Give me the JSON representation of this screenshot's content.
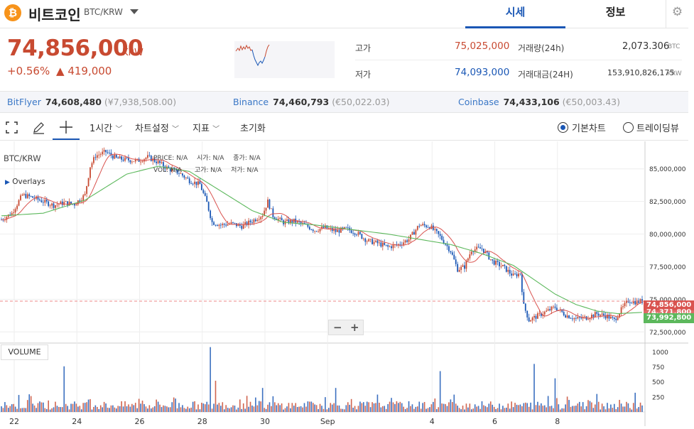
{
  "header": {
    "coin_name": "비트코인",
    "pair": "BTC/KRW",
    "coin_symbol": "₿",
    "tabs": [
      "시세",
      "정보"
    ]
  },
  "ticker": {
    "price": "74,856,000",
    "unit": "KRW",
    "change_pct": "+0.56%",
    "change_amt": "▲ 419,000",
    "high_label": "고가",
    "high": "75,025,000",
    "low_label": "저가",
    "low": "74,093,000",
    "volume_label": "거래량(24h)",
    "volume": "2,073.306",
    "volume_unit": "BTC",
    "value_label": "거래대금(24H)",
    "value": "153,910,826,175",
    "value_unit": "KRW"
  },
  "exchanges": [
    {
      "name": "BitFlyer",
      "price": "74,608,480",
      "sub": "(¥7,938,508.00)"
    },
    {
      "name": "Binance",
      "price": "74,460,793",
      "sub": "(€50,022.03)"
    },
    {
      "name": "Coinbase",
      "price": "74,433,106",
      "sub": "(€50,003.43)"
    }
  ],
  "toolbar": {
    "interval": "1시간",
    "chart_settings": "차트설정",
    "indicators": "지표",
    "reset": "초기화",
    "basic_chart": "기본차트",
    "tradingview": "트레이딩뷰"
  },
  "legend": {
    "symbol": "BTC/KRW",
    "overlays": "Overlays",
    "price_label": "PRICE:",
    "price_val": "N/A",
    "open_label": "시가:",
    "open_val": "N/A",
    "close_label": "종가:",
    "close_val": "N/A",
    "vol_label": "VOL:",
    "vol_val": "N/A",
    "high_label": "고가:",
    "high_val": "N/A",
    "low_label": "저가:",
    "low_val": "N/A",
    "volume_panel": "VOLUME",
    "zoom_out": "−",
    "zoom_in": "+"
  },
  "colors": {
    "up": "#c84a31",
    "down": "#1a57b5",
    "ma_short": "#d9534f",
    "ma_long": "#5cb85c",
    "accent": "#1a57b5"
  },
  "chart_data": {
    "type": "candlestick",
    "symbol": "BTC/KRW",
    "interval": "1h",
    "x_ticks": [
      "22",
      "24",
      "26",
      "28",
      "30",
      "Sep",
      "4",
      "6",
      "8"
    ],
    "y_ticks": [
      "85,000,000",
      "82,500,000",
      "80,000,000",
      "77,500,000",
      "75,000,000",
      "72,500,000"
    ],
    "y_ticks_values": [
      85000000,
      82500000,
      80000000,
      77500000,
      75000000,
      72500000
    ],
    "ylim": [
      71700000,
      87000000
    ],
    "volume_ticks": [
      "1000",
      "750",
      "500",
      "250"
    ],
    "volume_ticks_values": [
      1000,
      750,
      500,
      250
    ],
    "volume_ylim": [
      0,
      1100
    ],
    "last_price": 74856000,
    "last_price_label": "74,856,000",
    "ma_short_last_label": "74,371,800",
    "ma_long_last_label": "73,992,800",
    "price_path": [
      [
        0,
        81100000
      ],
      [
        6,
        81600000
      ],
      [
        12,
        83000000
      ],
      [
        18,
        82800000
      ],
      [
        24,
        82500000
      ],
      [
        30,
        82200000
      ],
      [
        36,
        82400000
      ],
      [
        42,
        82300000
      ],
      [
        48,
        83000000
      ],
      [
        51,
        85200000
      ],
      [
        54,
        86000000
      ],
      [
        60,
        86300000
      ],
      [
        66,
        85800000
      ],
      [
        72,
        85700000
      ],
      [
        78,
        85600000
      ],
      [
        84,
        85900000
      ],
      [
        90,
        85500000
      ],
      [
        96,
        85000000
      ],
      [
        102,
        84700000
      ],
      [
        108,
        84100000
      ],
      [
        114,
        83800000
      ],
      [
        118,
        82400000
      ],
      [
        121,
        80900000
      ],
      [
        126,
        80700000
      ],
      [
        132,
        80800000
      ],
      [
        138,
        80600000
      ],
      [
        144,
        81000000
      ],
      [
        150,
        81500000
      ],
      [
        153,
        82500000
      ],
      [
        156,
        81400000
      ],
      [
        162,
        80900000
      ],
      [
        168,
        81000000
      ],
      [
        174,
        80700000
      ],
      [
        180,
        80300000
      ],
      [
        186,
        80500000
      ],
      [
        192,
        80200000
      ],
      [
        198,
        80400000
      ],
      [
        204,
        80100000
      ],
      [
        210,
        79500000
      ],
      [
        216,
        79300000
      ],
      [
        222,
        79000000
      ],
      [
        228,
        79200000
      ],
      [
        234,
        79600000
      ],
      [
        240,
        80700000
      ],
      [
        246,
        80600000
      ],
      [
        252,
        79800000
      ],
      [
        258,
        78700000
      ],
      [
        262,
        77300000
      ],
      [
        266,
        77500000
      ],
      [
        270,
        78800000
      ],
      [
        276,
        78900000
      ],
      [
        282,
        77900000
      ],
      [
        288,
        77500000
      ],
      [
        294,
        76800000
      ],
      [
        298,
        77000000
      ],
      [
        300,
        74500000
      ],
      [
        303,
        73400000
      ],
      [
        306,
        73600000
      ],
      [
        312,
        74000000
      ],
      [
        318,
        74400000
      ],
      [
        324,
        73800000
      ],
      [
        330,
        73500000
      ],
      [
        336,
        73600000
      ],
      [
        342,
        73900000
      ],
      [
        348,
        73700000
      ],
      [
        352,
        73400000
      ],
      [
        356,
        74200000
      ],
      [
        360,
        74900000
      ],
      [
        364,
        74800000
      ],
      [
        368,
        74856000
      ]
    ],
    "ma_long_path": [
      [
        0,
        81400000
      ],
      [
        24,
        81600000
      ],
      [
        48,
        82600000
      ],
      [
        72,
        84600000
      ],
      [
        90,
        85200000
      ],
      [
        108,
        84800000
      ],
      [
        126,
        83300000
      ],
      [
        144,
        81800000
      ],
      [
        162,
        80900000
      ],
      [
        180,
        80700000
      ],
      [
        204,
        80300000
      ],
      [
        222,
        80000000
      ],
      [
        240,
        79600000
      ],
      [
        258,
        79200000
      ],
      [
        276,
        78500000
      ],
      [
        294,
        77600000
      ],
      [
        306,
        76500000
      ],
      [
        318,
        75400000
      ],
      [
        330,
        74600000
      ],
      [
        342,
        74100000
      ],
      [
        354,
        73900000
      ],
      [
        368,
        74000000
      ]
    ],
    "x_tick_positions": [
      0,
      36,
      72,
      108,
      144,
      180,
      240,
      276,
      312
    ],
    "volume_spikes": [
      [
        36,
        760
      ],
      [
        120,
        1080
      ],
      [
        123,
        520
      ],
      [
        150,
        400
      ],
      [
        192,
        400
      ],
      [
        252,
        680
      ],
      [
        306,
        800
      ],
      [
        318,
        560
      ],
      [
        342,
        300
      ],
      [
        364,
        320
      ]
    ]
  }
}
